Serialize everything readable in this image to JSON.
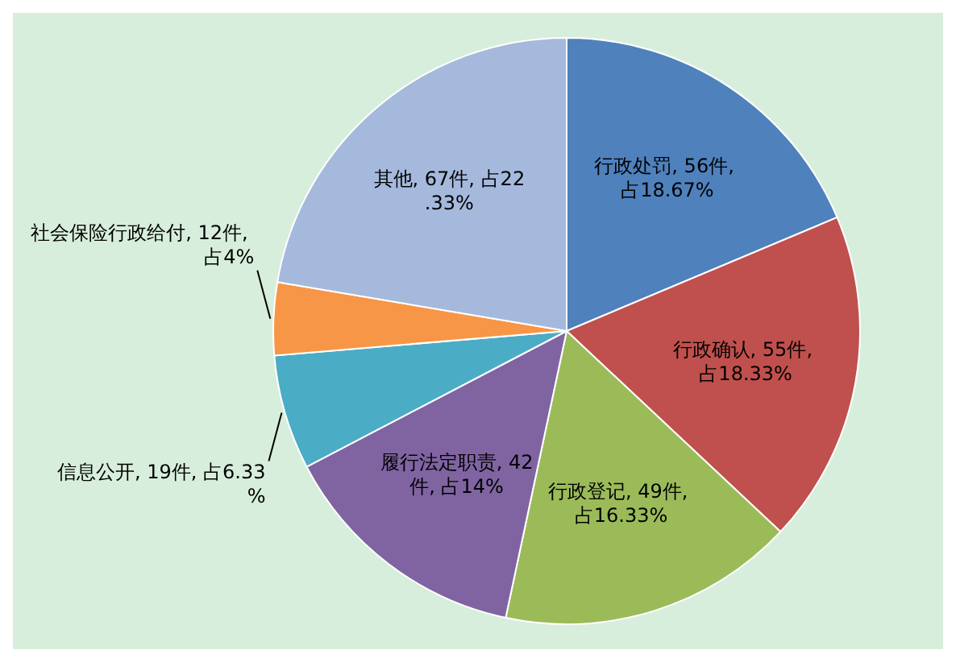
{
  "chart_data": {
    "type": "pie",
    "categories": [
      "行政处罚",
      "行政确认",
      "行政登记",
      "履行法定职责",
      "信息公开",
      "社会保险行政给付",
      "其他"
    ],
    "values": [
      56,
      55,
      49,
      42,
      19,
      12,
      67
    ],
    "colors": [
      "#4f81bd",
      "#c0504d",
      "#9bbb59",
      "#8064a2",
      "#4bacc6",
      "#f79646",
      "#a5b9dc"
    ],
    "value_labels": [
      "56件, 占18.67%",
      "55件, 占18.33%",
      "49件, 占16.33%",
      "42件, 占14%",
      "19件, 占6.33%",
      "12件, 占4%",
      "67件, 占22.33%"
    ],
    "legend": false
  }
}
